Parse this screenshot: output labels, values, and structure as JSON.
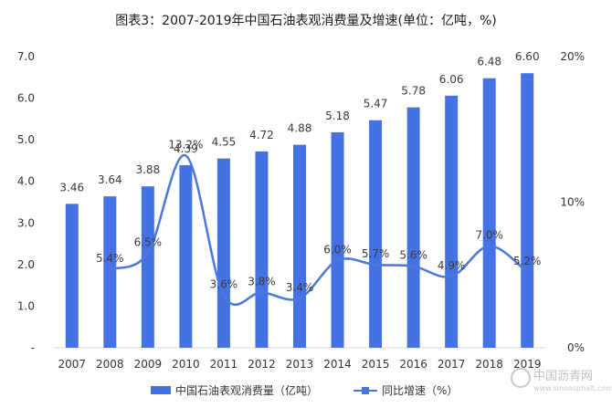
{
  "chart_data": {
    "type": "bar",
    "title": "图表3：2007-2019年中国石油表观消费量及增速(单位：亿吨，%)",
    "categories": [
      "2007",
      "2008",
      "2009",
      "2010",
      "2011",
      "2012",
      "2013",
      "2014",
      "2015",
      "2016",
      "2017",
      "2018",
      "2019"
    ],
    "series": [
      {
        "name": "中国石油表观消费量（亿吨）",
        "type": "bar",
        "axis": "left",
        "color": "#4472e4",
        "values": [
          3.46,
          3.64,
          3.88,
          4.39,
          4.55,
          4.72,
          4.88,
          5.18,
          5.47,
          5.78,
          6.06,
          6.48,
          6.6
        ],
        "labels": [
          "3.46",
          "3.64",
          "3.88",
          "4.39",
          "4.55",
          "4.72",
          "4.88",
          "5.18",
          "5.47",
          "5.78",
          "6.06",
          "6.48",
          "6.60"
        ]
      },
      {
        "name": "同比增速（%）",
        "type": "line",
        "axis": "right",
        "color": "#4a78dc",
        "values": [
          null,
          5.4,
          6.5,
          13.2,
          3.6,
          3.8,
          3.4,
          6.0,
          5.7,
          5.6,
          4.9,
          7.0,
          5.2
        ],
        "labels": [
          "",
          "5.4%",
          "6.5%",
          "13.2%",
          "3.6%",
          "3.8%",
          "3.4%",
          "6.0%",
          "5.7%",
          "5.6%",
          "4.9%",
          "7.0%",
          "5.2%"
        ]
      }
    ],
    "y_left": {
      "min": 0,
      "max": 7,
      "ticks": [
        "-",
        "1.0",
        "2.0",
        "3.0",
        "4.0",
        "5.0",
        "6.0",
        "7.0"
      ]
    },
    "y_right": {
      "min": 0,
      "max": 20,
      "ticks": [
        "0%",
        "10%",
        "20%"
      ]
    },
    "grid": false,
    "legend_position": "bottom"
  },
  "watermark": {
    "logo_text": "中国沥青网",
    "url_text": "www.sinoasphalt.com"
  }
}
